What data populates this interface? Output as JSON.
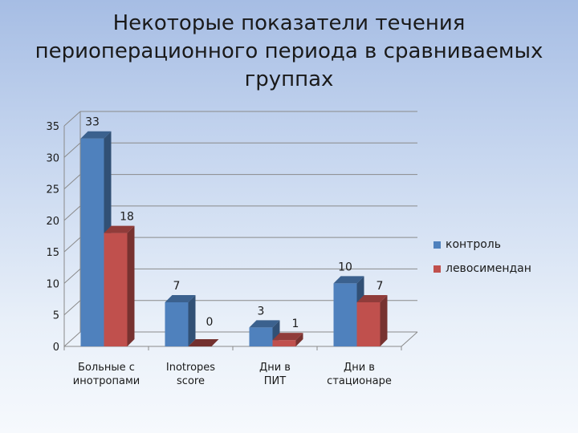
{
  "slide": {
    "title": "Некоторые показатели течения периоперационного периода в сравниваемых группах"
  },
  "chart_data": {
    "type": "bar",
    "style": "3d-clustered-column",
    "categories": [
      "Больные с инотропами",
      "Inotropes score",
      "Дни в ПИТ",
      "Дни в стационаре"
    ],
    "series": [
      {
        "name": "контроль",
        "values": [
          33,
          7,
          3,
          10
        ],
        "color": "#4f81bd"
      },
      {
        "name": "левосимендан",
        "values": [
          18,
          0,
          1,
          7
        ],
        "color": "#c0504d"
      }
    ],
    "ylim": [
      0,
      35
    ],
    "yticks": [
      0,
      5,
      10,
      15,
      20,
      25,
      30,
      35
    ],
    "grid": true,
    "legend_position": "right",
    "data_labels": true
  }
}
